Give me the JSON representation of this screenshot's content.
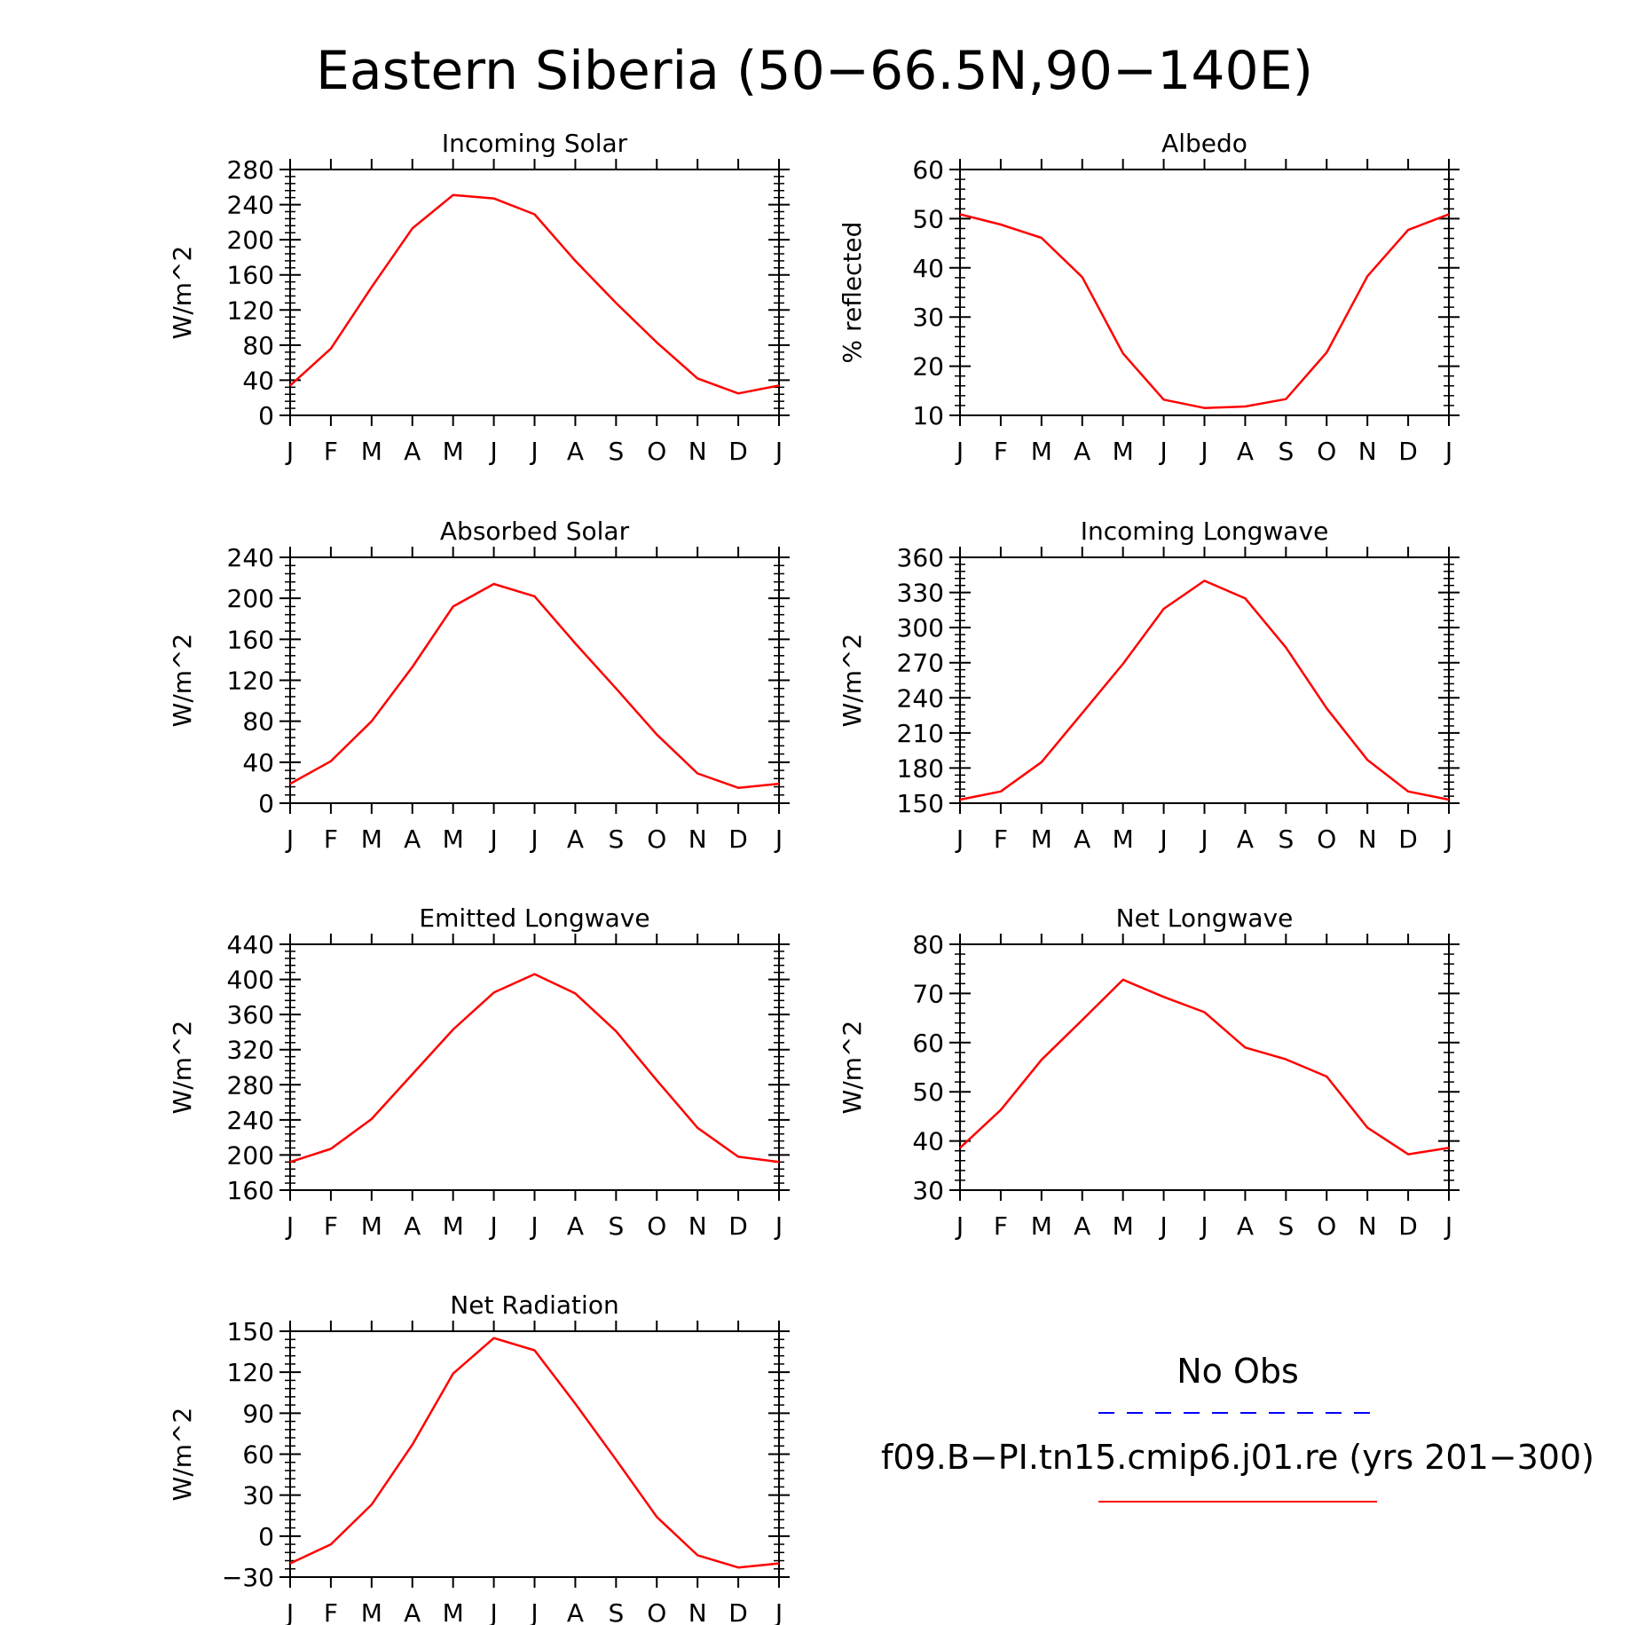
{
  "figure": {
    "title": "Eastern Siberia (50−66.5N,90−140E)"
  },
  "legend": {
    "obs_label": "No Obs",
    "obs_color": "#0000ff",
    "model_label": "f09.B−PI.tn15.cmip6.j01.re (yrs 201−300)",
    "model_color": "#ff0000"
  },
  "chart_data": [
    {
      "type": "line",
      "title": "Incoming Solar",
      "ylabel": "W/m^2",
      "x": [
        "J",
        "F",
        "M",
        "A",
        "M",
        "J",
        "J",
        "A",
        "S",
        "O",
        "N",
        "D",
        "J"
      ],
      "ylim": [
        0,
        280
      ],
      "yticks": [
        0,
        40,
        80,
        120,
        160,
        200,
        240,
        280
      ],
      "ytick_labels": [
        "0",
        "40",
        "80",
        "120",
        "160",
        "200",
        "240",
        "280"
      ],
      "series": [
        {
          "values": [
            34,
            76,
            146,
            213,
            251,
            247,
            229,
            176,
            128,
            83,
            42,
            25,
            34
          ],
          "color": "#ff0000"
        }
      ]
    },
    {
      "type": "line",
      "title": "Albedo",
      "ylabel": "% reflected",
      "x": [
        "J",
        "F",
        "M",
        "A",
        "M",
        "J",
        "J",
        "A",
        "S",
        "O",
        "N",
        "D",
        "J"
      ],
      "ylim": [
        10,
        60
      ],
      "yticks": [
        10,
        20,
        30,
        40,
        50,
        60
      ],
      "ytick_labels": [
        "10",
        "20",
        "30",
        "40",
        "50",
        "60"
      ],
      "series": [
        {
          "values": [
            50.9,
            48.8,
            46.1,
            38.1,
            22.6,
            13.2,
            11.5,
            11.8,
            13.3,
            22.8,
            38.3,
            47.7,
            50.9
          ],
          "color": "#ff0000"
        }
      ]
    },
    {
      "type": "line",
      "title": "Absorbed Solar",
      "ylabel": "W/m^2",
      "x": [
        "J",
        "F",
        "M",
        "A",
        "M",
        "J",
        "J",
        "A",
        "S",
        "O",
        "N",
        "D",
        "J"
      ],
      "ylim": [
        0,
        240
      ],
      "yticks": [
        0,
        40,
        80,
        120,
        160,
        200,
        240
      ],
      "ytick_labels": [
        "0",
        "40",
        "80",
        "120",
        "160",
        "200",
        "240"
      ],
      "series": [
        {
          "values": [
            19,
            41,
            80,
            133,
            192,
            214,
            202,
            156,
            112,
            67,
            29,
            15,
            19
          ],
          "color": "#ff0000"
        }
      ]
    },
    {
      "type": "line",
      "title": "Incoming Longwave",
      "ylabel": "W/m^2",
      "x": [
        "J",
        "F",
        "M",
        "A",
        "M",
        "J",
        "J",
        "A",
        "S",
        "O",
        "N",
        "D",
        "J"
      ],
      "ylim": [
        150,
        360
      ],
      "yticks": [
        150,
        180,
        210,
        240,
        270,
        300,
        330,
        360
      ],
      "ytick_labels": [
        "150",
        "180",
        "210",
        "240",
        "270",
        "300",
        "330",
        "360"
      ],
      "series": [
        {
          "values": [
            153,
            160,
            185,
            227,
            269,
            316,
            340,
            325,
            283,
            231,
            187,
            160,
            153
          ],
          "color": "#ff0000"
        }
      ]
    },
    {
      "type": "line",
      "title": "Emitted Longwave",
      "ylabel": "W/m^2",
      "x": [
        "J",
        "F",
        "M",
        "A",
        "M",
        "J",
        "J",
        "A",
        "S",
        "O",
        "N",
        "D",
        "J"
      ],
      "ylim": [
        160,
        440
      ],
      "yticks": [
        160,
        200,
        240,
        280,
        320,
        360,
        400,
        440
      ],
      "ytick_labels": [
        "160",
        "200",
        "240",
        "280",
        "320",
        "360",
        "400",
        "440"
      ],
      "series": [
        {
          "values": [
            192,
            207,
            241,
            292,
            343,
            385,
            406,
            384,
            341,
            285,
            231,
            198,
            192
          ],
          "color": "#ff0000"
        }
      ]
    },
    {
      "type": "line",
      "title": "Net Longwave",
      "ylabel": "W/m^2",
      "x": [
        "J",
        "F",
        "M",
        "A",
        "M",
        "J",
        "J",
        "A",
        "S",
        "O",
        "N",
        "D",
        "J"
      ],
      "ylim": [
        30,
        80
      ],
      "yticks": [
        30,
        40,
        50,
        60,
        70,
        80
      ],
      "ytick_labels": [
        "30",
        "40",
        "50",
        "60",
        "70",
        "80"
      ],
      "series": [
        {
          "values": [
            38.6,
            46.3,
            56.5,
            64.6,
            72.8,
            69.3,
            66.2,
            59.0,
            56.6,
            53.1,
            42.7,
            37.3,
            38.6
          ],
          "color": "#ff0000"
        }
      ]
    },
    {
      "type": "line",
      "title": "Net Radiation",
      "ylabel": "W/m^2",
      "x": [
        "J",
        "F",
        "M",
        "A",
        "M",
        "J",
        "J",
        "A",
        "S",
        "O",
        "N",
        "D",
        "J"
      ],
      "ylim": [
        -30,
        150
      ],
      "yticks": [
        -30,
        0,
        30,
        60,
        90,
        120,
        150
      ],
      "ytick_labels": [
        "−30",
        "0",
        "30",
        "60",
        "90",
        "120",
        "150"
      ],
      "series": [
        {
          "values": [
            -20,
            -6,
            23,
            67,
            119,
            145,
            136,
            97,
            56,
            14,
            -14,
            -23,
            -20
          ],
          "color": "#ff0000"
        }
      ]
    }
  ]
}
